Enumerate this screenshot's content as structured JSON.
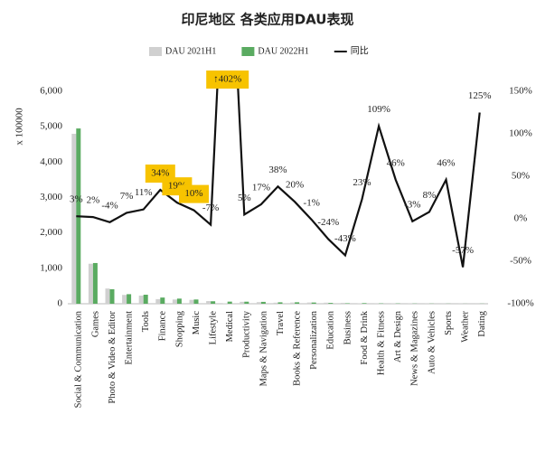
{
  "chart_data": {
    "type": "bar_line",
    "title": "印尼地区 各类应用DAU表现",
    "y_label": "x 100000",
    "categories": [
      "Social & Communication",
      "Games",
      "Photo & Video & Editor",
      "Entertainment",
      "Tools",
      "Finance",
      "Shopping",
      "Music",
      "Lifestyle",
      "Medical",
      "Productivity",
      "Maps & Navigation",
      "Travel",
      "Books & Reference",
      "Personalization",
      "Education",
      "Business",
      "Food & Drink",
      "Health & Fitness",
      "Art & Design",
      "News & Magazines",
      "Auto & Vehicles",
      "Sports",
      "Weather",
      "Dating"
    ],
    "series": [
      {
        "name": "DAU 2021H1",
        "color": "#d0d0d0",
        "values": [
          4800,
          1130,
          430,
          250,
          230,
          130,
          120,
          110,
          75,
          12,
          55,
          45,
          30,
          35,
          35,
          30,
          25,
          15,
          5,
          6,
          6,
          5,
          3,
          4,
          2
        ]
      },
      {
        "name": "DAU 2022H1",
        "color": "#5aab61",
        "values": [
          4950,
          1150,
          410,
          270,
          255,
          175,
          145,
          120,
          70,
          60,
          58,
          53,
          41,
          42,
          35,
          23,
          14,
          18,
          10,
          9,
          6,
          5,
          4,
          2,
          4
        ]
      },
      {
        "name": "同比",
        "color": "#111111",
        "axis": "y2",
        "type": "line",
        "values": [
          3,
          2,
          -4,
          7,
          11,
          34,
          19,
          10,
          -7,
          402,
          5,
          17,
          38,
          20,
          -1,
          -24,
          -43,
          23,
          109,
          46,
          -3,
          8,
          46,
          -57,
          125
        ],
        "value_labels": [
          "3%",
          "2%",
          "-4%",
          "7%",
          "11%",
          "34%",
          "19%",
          "10%",
          "-7%",
          "↑402%",
          "5%",
          "17%",
          "38%",
          "20%",
          "-1%",
          "-24%",
          "-43%",
          "23%",
          "109%",
          "46%",
          "-3%",
          "8%",
          "46%",
          "-57%",
          "125%"
        ]
      }
    ],
    "highlight": {
      "color": "#f7c300",
      "indices": [
        5,
        6,
        7,
        9
      ]
    },
    "ylim": [
      0,
      6000
    ],
    "yticks": [
      0,
      {
        "value": 1000,
        "label": "1,000"
      },
      {
        "value": 2000,
        "label": "2,000"
      },
      {
        "value": 3000,
        "label": "3,000"
      },
      {
        "value": 4000,
        "label": "4,000"
      },
      {
        "value": 5000,
        "label": "5,000"
      },
      {
        "value": 6000,
        "label": "6,000"
      }
    ],
    "y2lim": [
      -100,
      150
    ],
    "y2ticks": [
      {
        "value": -100,
        "label": "-100%"
      },
      {
        "value": -50,
        "label": "-50%"
      },
      {
        "value": 0,
        "label": "0%"
      },
      {
        "value": 50,
        "label": "50%"
      },
      {
        "value": 100,
        "label": "100%"
      },
      {
        "value": 150,
        "label": "150%"
      }
    ],
    "legend": "top"
  }
}
